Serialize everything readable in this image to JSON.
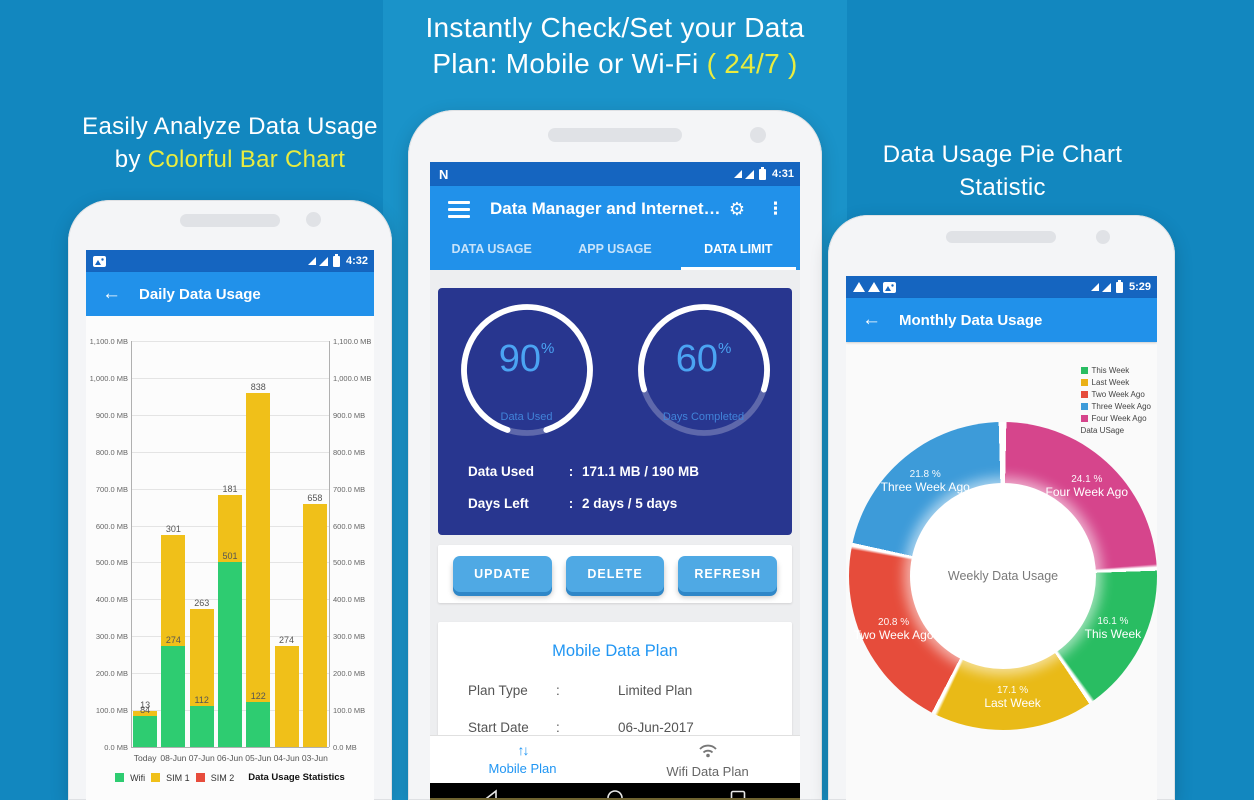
{
  "background": {
    "base": "#1287bf",
    "center_panel": "#1a93c9"
  },
  "promo": {
    "accent_yellow": "#e9ec3f",
    "banner_line1": "Instantly Check/Set your Data",
    "banner_line2": "Plan: Mobile or Wi-Fi",
    "banner_accent": "( 24/7 )",
    "left_line1": "Easily Analyze Data Usage",
    "left_line2_prefix": "by ",
    "left_line2_accent": "Colorful Bar Chart",
    "right_line1": "Data Usage Pie Chart",
    "right_line2": "Statistic"
  },
  "left_phone": {
    "status_time": "4:32",
    "app_bar": {
      "back_icon": "←",
      "title": "Daily Data Usage"
    },
    "chart_data": {
      "type": "bar",
      "stacked": true,
      "title": "Data Usage Statistics",
      "categories": [
        "Today",
        "08-Jun",
        "07-Jun",
        "06-Jun",
        "05-Jun",
        "04-Jun",
        "03-Jun"
      ],
      "series": [
        {
          "name": "Wifi",
          "color": "#2ecc71",
          "values": [
            84,
            274,
            112,
            501,
            122,
            0,
            0
          ]
        },
        {
          "name": "SIM 1",
          "color": "#f0c019",
          "values": [
            13,
            301,
            263,
            181,
            838,
            274,
            658
          ]
        },
        {
          "name": "SIM 2",
          "color": "#e74c3c",
          "values": [
            0,
            0,
            0,
            0,
            0,
            0,
            0
          ]
        }
      ],
      "ylim": [
        0,
        1100
      ],
      "yticks": [
        "1,100.0 MB",
        "1,000.0 MB",
        "900.0 MB",
        "800.0 MB",
        "700.0 MB",
        "600.0 MB",
        "500.0 MB",
        "400.0 MB",
        "300.0 MB",
        "200.0 MB",
        "100.0 MB",
        "0.0 MB"
      ],
      "legend_position": "bottom"
    }
  },
  "middle_phone": {
    "status_time": "4:31",
    "app_bar": {
      "title": "Data Manager and Internet…",
      "gear_icon": "⚙",
      "overflow_icon": "⋮"
    },
    "tabs": [
      {
        "label": "DATA USAGE",
        "active": false
      },
      {
        "label": "APP USAGE",
        "active": false
      },
      {
        "label": "DATA LIMIT",
        "active": true
      }
    ],
    "gauges": [
      {
        "percent": 90,
        "percent_suffix": "%",
        "label": "Data Used"
      },
      {
        "percent": 60,
        "percent_suffix": "%",
        "label": "Days Completed"
      }
    ],
    "usage_rows": [
      {
        "label": "Data Used",
        "separator": ":",
        "value": "171.1 MB / 190 MB"
      },
      {
        "label": "Days Left",
        "separator": ":",
        "value": "2 days / 5 days"
      }
    ],
    "action_buttons": [
      "UPDATE",
      "DELETE",
      "REFRESH"
    ],
    "plan_card": {
      "title": "Mobile Data Plan",
      "rows": [
        {
          "label": "Plan Type",
          "separator": ":",
          "value": "Limited Plan"
        },
        {
          "label": "Start Date",
          "separator": ":",
          "value": "06-Jun-2017"
        }
      ]
    },
    "bottom_nav": [
      {
        "label": "Mobile Plan",
        "icon": "swap-vertical-icon",
        "icon_glyph": "↑↓",
        "active": true
      },
      {
        "label": "Wifi Data Plan",
        "icon": "wifi-icon",
        "active": false
      }
    ]
  },
  "right_phone": {
    "status_time": "5:29",
    "app_bar": {
      "back_icon": "←",
      "title": "Monthly Data Usage"
    },
    "chart_data": {
      "type": "pie",
      "donut": true,
      "center_label": "Weekly Data Usage",
      "slices": [
        {
          "label": "Four Week Ago",
          "pct": 24.1,
          "pct_text": "24.1 %",
          "color": "#d6458c"
        },
        {
          "label": "This Week",
          "pct": 16.1,
          "pct_text": "16.1 %",
          "color": "#29bd62"
        },
        {
          "label": "Last Week",
          "pct": 17.1,
          "pct_text": "17.1 %",
          "color": "#e9ba17"
        },
        {
          "label": "Two Week Ago",
          "pct": 20.8,
          "pct_text": "20.8 %",
          "color": "#e64c3b"
        },
        {
          "label": "Three Week Ago",
          "pct": 21.8,
          "pct_text": "21.8 %",
          "color": "#3d9bd9"
        }
      ],
      "legend": {
        "items": [
          {
            "label": "This Week",
            "color": "#29bd62"
          },
          {
            "label": "Last Week",
            "color": "#eab117"
          },
          {
            "label": "Two Week Ago",
            "color": "#e64c3b"
          },
          {
            "label": "Three Week Ago",
            "color": "#3d9bd9"
          },
          {
            "label": "Four Week Ago",
            "color": "#d6458c"
          }
        ],
        "footer": "Data USage"
      }
    }
  }
}
